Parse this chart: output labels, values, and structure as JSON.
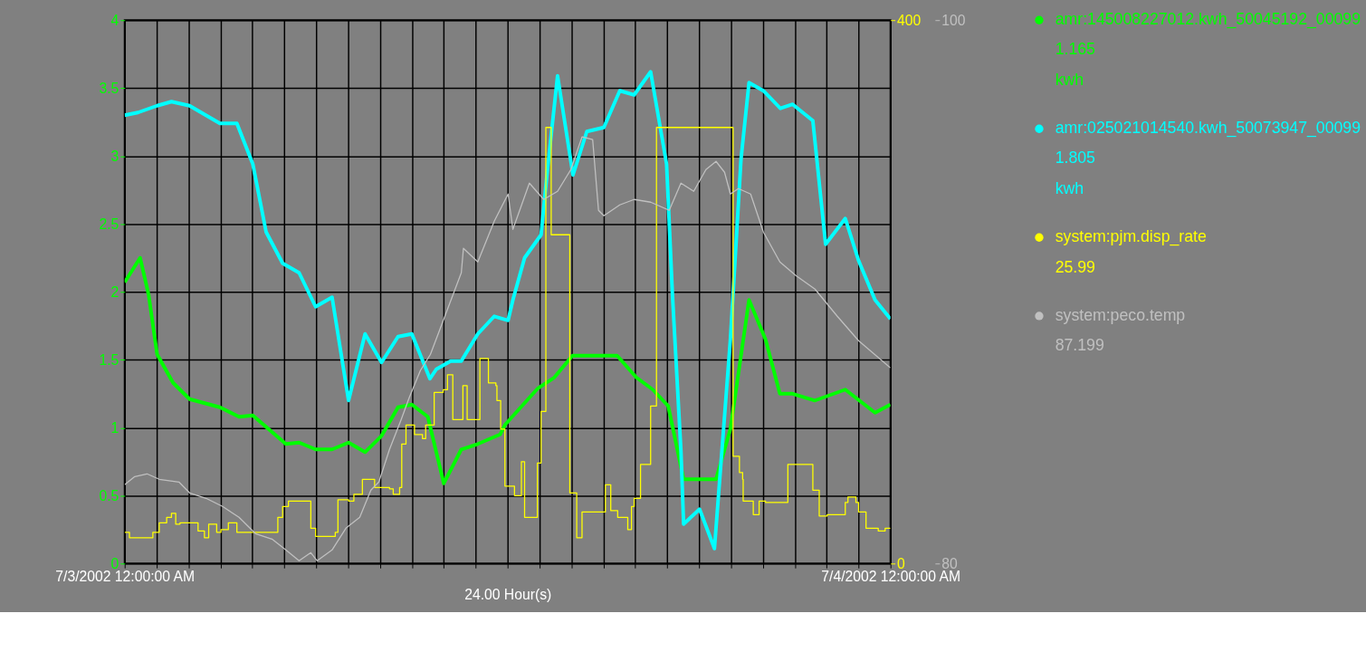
{
  "chart_data": {
    "type": "line",
    "xlabel": "24.00 Hour(s)",
    "xlim": [
      "2002-07-03T00:00",
      "2002-07-04T00:00"
    ],
    "xticks": [
      {
        "value": "2002-07-03T00:00",
        "label": "7/3/2002 12:00:00 AM"
      },
      {
        "value": "2002-07-03T01:00",
        "label": null
      },
      {
        "value": "2002-07-03T02:00",
        "label": null
      },
      {
        "value": "2002-07-03T03:00",
        "label": null
      },
      {
        "value": "2002-07-03T04:00",
        "label": null
      },
      {
        "value": "2002-07-03T05:00",
        "label": null
      },
      {
        "value": "2002-07-03T06:00",
        "label": null
      },
      {
        "value": "2002-07-03T07:00",
        "label": null
      },
      {
        "value": "2002-07-03T08:00",
        "label": null
      },
      {
        "value": "2002-07-03T09:00",
        "label": null
      },
      {
        "value": "2002-07-03T10:00",
        "label": null
      },
      {
        "value": "2002-07-03T11:00",
        "label": null
      },
      {
        "value": "2002-07-03T12:00",
        "label": null
      },
      {
        "value": "2002-07-03T13:00",
        "label": null
      },
      {
        "value": "2002-07-03T14:00",
        "label": null
      },
      {
        "value": "2002-07-03T15:00",
        "label": null
      },
      {
        "value": "2002-07-03T16:00",
        "label": null
      },
      {
        "value": "2002-07-03T17:00",
        "label": null
      },
      {
        "value": "2002-07-03T18:00",
        "label": null
      },
      {
        "value": "2002-07-03T19:00",
        "label": null
      },
      {
        "value": "2002-07-03T20:00",
        "label": null
      },
      {
        "value": "2002-07-03T21:00",
        "label": null
      },
      {
        "value": "2002-07-03T22:00",
        "label": null
      },
      {
        "value": "2002-07-03T23:00",
        "label": null
      },
      {
        "value": "2002-07-04T00:00",
        "label": "7/4/2002 12:00:00 AM"
      }
    ],
    "ylim": [
      0,
      4
    ],
    "yticks": [
      0,
      0.5,
      1,
      1.5,
      2,
      2.5,
      3,
      3.5,
      4
    ],
    "y2lim": [
      0,
      400
    ],
    "y2ticks": [
      0,
      400
    ],
    "y3lim": [
      80,
      100
    ],
    "y3ticks": [
      80,
      100
    ],
    "grid": true,
    "legend": "right",
    "series": [
      {
        "name": "amr:145008227012.kwh_50045192_00099\n1.165\nkwh",
        "color": "#00ff00",
        "x": [
          "2002-07-03T00:00",
          "2002-07-03T00:29",
          "2002-07-03T00:45",
          "2002-07-03T01:01",
          "2002-07-03T01:31",
          "2002-07-03T02:02",
          "2002-07-03T02:59",
          "2002-07-03T03:35",
          "2002-07-03T04:01",
          "2002-07-03T05:03",
          "2002-07-03T05:28",
          "2002-07-03T05:59",
          "2002-07-03T06:30",
          "2002-07-03T07:01",
          "2002-07-03T07:32",
          "2002-07-03T08:03",
          "2002-07-03T08:34",
          "2002-07-03T09:00",
          "2002-07-03T09:30",
          "2002-07-03T10:00",
          "2002-07-03T10:33",
          "2002-07-03T11:04",
          "2002-07-03T11:46",
          "2002-07-03T11:55",
          "2002-07-03T12:57",
          "2002-07-03T13:28",
          "2002-07-03T14:02",
          "2002-07-03T15:26",
          "2002-07-03T16:02",
          "2002-07-03T16:33",
          "2002-07-03T17:02",
          "2002-07-03T17:31",
          "2002-07-03T18:32",
          "2002-07-03T18:59",
          "2002-07-03T19:34",
          "2002-07-03T20:05",
          "2002-07-03T20:32",
          "2002-07-03T20:56",
          "2002-07-03T21:38",
          "2002-07-03T22:35",
          "2002-07-03T23:31",
          "2002-07-04T00:00"
        ],
        "values": [
          2.07,
          2.25,
          1.98,
          1.54,
          1.33,
          1.21,
          1.15,
          1.08,
          1.09,
          0.88,
          0.89,
          0.84,
          0.84,
          0.89,
          0.82,
          0.94,
          1.15,
          1.17,
          1.08,
          0.59,
          0.84,
          0.88,
          0.95,
          1.02,
          1.29,
          1.37,
          1.53,
          1.53,
          1.37,
          1.28,
          1.16,
          0.62,
          0.62,
          0.99,
          1.94,
          1.65,
          1.25,
          1.25,
          1.2,
          1.28,
          1.11,
          1.17
        ]
      },
      {
        "name": "amr:025021014540.kwh_50073947_00099\n1.805\nkwh",
        "color": "#00ffff",
        "x": [
          "2002-07-03T00:00",
          "2002-07-03T00:25",
          "2002-07-03T01:01",
          "2002-07-03T01:28",
          "2002-07-03T02:02",
          "2002-07-03T02:59",
          "2002-07-03T03:31",
          "2002-07-03T04:01",
          "2002-07-03T04:26",
          "2002-07-03T04:57",
          "2002-07-03T05:28",
          "2002-07-03T05:59",
          "2002-07-03T06:30",
          "2002-07-03T07:01",
          "2002-07-03T07:32",
          "2002-07-03T08:03",
          "2002-07-03T08:34",
          "2002-07-03T09:00",
          "2002-07-03T09:34",
          "2002-07-03T09:46",
          "2002-07-03T10:13",
          "2002-07-03T10:33",
          "2002-07-03T11:04",
          "2002-07-03T11:35",
          "2002-07-03T12:01",
          "2002-07-03T12:10",
          "2002-07-03T12:32",
          "2002-07-03T13:03",
          "2002-07-03T13:15",
          "2002-07-03T13:34",
          "2002-07-03T14:03",
          "2002-07-03T14:29",
          "2002-07-03T15:01",
          "2002-07-03T15:31",
          "2002-07-03T15:58",
          "2002-07-03T16:29",
          "2002-07-03T16:59",
          "2002-07-03T17:10",
          "2002-07-03T17:26",
          "2002-07-03T17:31",
          "2002-07-03T18:01",
          "2002-07-03T18:29",
          "2002-07-03T18:43",
          "2002-07-03T18:59",
          "2002-07-03T19:19",
          "2002-07-03T19:34",
          "2002-07-03T20:01",
          "2002-07-03T20:33",
          "2002-07-03T20:56",
          "2002-07-03T21:34",
          "2002-07-03T21:58",
          "2002-07-03T22:35",
          "2002-07-03T23:00",
          "2002-07-03T23:31",
          "2002-07-04T00:00"
        ],
        "values": [
          3.3,
          3.32,
          3.37,
          3.4,
          3.37,
          3.24,
          3.24,
          2.94,
          2.44,
          2.21,
          2.14,
          1.89,
          1.96,
          1.2,
          1.69,
          1.48,
          1.67,
          1.69,
          1.36,
          1.43,
          1.49,
          1.49,
          1.69,
          1.82,
          1.79,
          1.94,
          2.25,
          2.42,
          2.9,
          3.59,
          2.86,
          3.18,
          3.21,
          3.48,
          3.45,
          3.62,
          2.94,
          1.98,
          0.83,
          0.29,
          0.4,
          0.11,
          0.83,
          1.65,
          2.98,
          3.54,
          3.48,
          3.35,
          3.38,
          3.26,
          2.35,
          2.54,
          2.23,
          1.94,
          1.8
        ]
      },
      {
        "name": "system:pjm.disp_rate\n25.99",
        "color": "#ffff00",
        "type": "step",
        "axis": "y2",
        "x": [
          "2002-07-03T00:00",
          "2002-07-03T00:09",
          "2002-07-03T00:53",
          "2002-07-03T01:05",
          "2002-07-03T01:19",
          "2002-07-03T01:28",
          "2002-07-03T01:36",
          "2002-07-03T01:44",
          "2002-07-03T02:18",
          "2002-07-03T02:30",
          "2002-07-03T02:38",
          "2002-07-03T02:53",
          "2002-07-03T03:01",
          "2002-07-03T03:15",
          "2002-07-03T03:31",
          "2002-07-03T04:48",
          "2002-07-03T04:57",
          "2002-07-03T05:08",
          "2002-07-03T05:50",
          "2002-07-03T05:59",
          "2002-07-03T06:36",
          "2002-07-03T06:41",
          "2002-07-03T07:01",
          "2002-07-03T07:11",
          "2002-07-03T07:27",
          "2002-07-03T07:50",
          "2002-07-03T08:18",
          "2002-07-03T08:25",
          "2002-07-03T08:37",
          "2002-07-03T08:41",
          "2002-07-03T08:49",
          "2002-07-03T09:05",
          "2002-07-03T09:20",
          "2002-07-03T09:26",
          "2002-07-03T09:42",
          "2002-07-03T09:59",
          "2002-07-03T10:07",
          "2002-07-03T10:17",
          "2002-07-03T10:36",
          "2002-07-03T10:44",
          "2002-07-03T11:08",
          "2002-07-03T11:24",
          "2002-07-03T11:38",
          "2002-07-03T11:40",
          "2002-07-03T11:47",
          "2002-07-03T11:55",
          "2002-07-03T12:13",
          "2002-07-03T12:26",
          "2002-07-03T12:32",
          "2002-07-03T12:56",
          "2002-07-03T13:03",
          "2002-07-03T13:12",
          "2002-07-03T13:22",
          "2002-07-03T13:57",
          "2002-07-03T14:10",
          "2002-07-03T14:20",
          "2002-07-03T15:04",
          "2002-07-03T15:14",
          "2002-07-03T15:27",
          "2002-07-03T15:46",
          "2002-07-03T15:53",
          "2002-07-03T15:58",
          "2002-07-03T16:10",
          "2002-07-03T16:29",
          "2002-07-03T16:40",
          "2002-07-03T19:04",
          "2002-07-03T19:16",
          "2002-07-03T19:22",
          "2002-07-03T19:23",
          "2002-07-03T19:42",
          "2002-07-03T19:53",
          "2002-07-03T20:05",
          "2002-07-03T20:47",
          "2002-07-03T21:34",
          "2002-07-03T21:46",
          "2002-07-03T22:01",
          "2002-07-03T22:35",
          "2002-07-03T22:40",
          "2002-07-03T22:55",
          "2002-07-03T23:00",
          "2002-07-03T23:14",
          "2002-07-03T23:37",
          "2002-07-03T23:50",
          "2002-07-04T00:00"
        ],
        "values": [
          23,
          19,
          23,
          30,
          34,
          37,
          29,
          30,
          24,
          19,
          29,
          23,
          25,
          30,
          23,
          34,
          42,
          46,
          26,
          20,
          23,
          47,
          46,
          51,
          62,
          56,
          55,
          51,
          56,
          88,
          102,
          95,
          92,
          102,
          126,
          128,
          139,
          106,
          131,
          106,
          151,
          133,
          131,
          120,
          99,
          57,
          50,
          75,
          34,
          74,
          112,
          321,
          242,
          52,
          19,
          38,
          58,
          39,
          34,
          25,
          42,
          48,
          73,
          116,
          321,
          79,
          67,
          62,
          46,
          36,
          46,
          45,
          73,
          54,
          35,
          36,
          45,
          49,
          45,
          38,
          26,
          24,
          26,
          26
        ]
      },
      {
        "name": "system:peco.temp\n87.199",
        "color": "#c0c0c0",
        "axis": "y3",
        "x": [
          "2002-07-03T00:00",
          "2002-07-03T00:19",
          "2002-07-03T00:42",
          "2002-07-03T01:05",
          "2002-07-03T01:42",
          "2002-07-03T02:02",
          "2002-07-03T02:33",
          "2002-07-03T03:04",
          "2002-07-03T03:35",
          "2002-07-03T04:06",
          "2002-07-03T04:37",
          "2002-07-03T05:03",
          "2002-07-03T05:28",
          "2002-07-03T05:50",
          "2002-07-03T06:02",
          "2002-07-03T06:30",
          "2002-07-03T06:56",
          "2002-07-03T07:22",
          "2002-07-03T07:43",
          "2002-07-03T07:58",
          "2002-07-03T08:18",
          "2002-07-03T08:40",
          "2002-07-03T08:55",
          "2002-07-03T09:16",
          "2002-07-03T09:35",
          "2002-07-03T10:33",
          "2002-07-03T10:37",
          "2002-07-03T11:04",
          "2002-07-03T11:35",
          "2002-07-03T12:01",
          "2002-07-03T12:10",
          "2002-07-03T12:41",
          "2002-07-03T13:08",
          "2002-07-03T13:34",
          "2002-07-03T13:59",
          "2002-07-03T14:20",
          "2002-07-03T14:40",
          "2002-07-03T14:51",
          "2002-07-03T15:01",
          "2002-07-03T15:31",
          "2002-07-03T15:58",
          "2002-07-03T16:29",
          "2002-07-03T17:04",
          "2002-07-03T17:26",
          "2002-07-03T17:50",
          "2002-07-03T18:13",
          "2002-07-03T18:32",
          "2002-07-03T18:48",
          "2002-07-03T18:59",
          "2002-07-03T19:14",
          "2002-07-03T19:37",
          "2002-07-03T20:01",
          "2002-07-03T20:32",
          "2002-07-03T21:02",
          "2002-07-03T21:38",
          "2002-07-03T22:20",
          "2002-07-03T23:00",
          "2002-07-04T00:00"
        ],
        "values": [
          82.9,
          83.2,
          83.3,
          83.1,
          83.0,
          82.6,
          82.4,
          82.1,
          81.7,
          81.1,
          80.9,
          80.5,
          80.1,
          80.4,
          80.1,
          80.5,
          81.3,
          81.7,
          82.7,
          83.0,
          84.2,
          85.3,
          86.1,
          87.1,
          87.7,
          90.7,
          91.6,
          91.1,
          92.6,
          93.6,
          92.3,
          94.0,
          93.4,
          93.7,
          94.5,
          95.7,
          95.6,
          93.0,
          92.8,
          93.2,
          93.4,
          93.3,
          93.0,
          94.0,
          93.7,
          94.5,
          94.8,
          94.4,
          93.6,
          93.8,
          93.6,
          92.2,
          91.1,
          90.6,
          90.1,
          89.1,
          88.2,
          87.2
        ]
      }
    ]
  }
}
